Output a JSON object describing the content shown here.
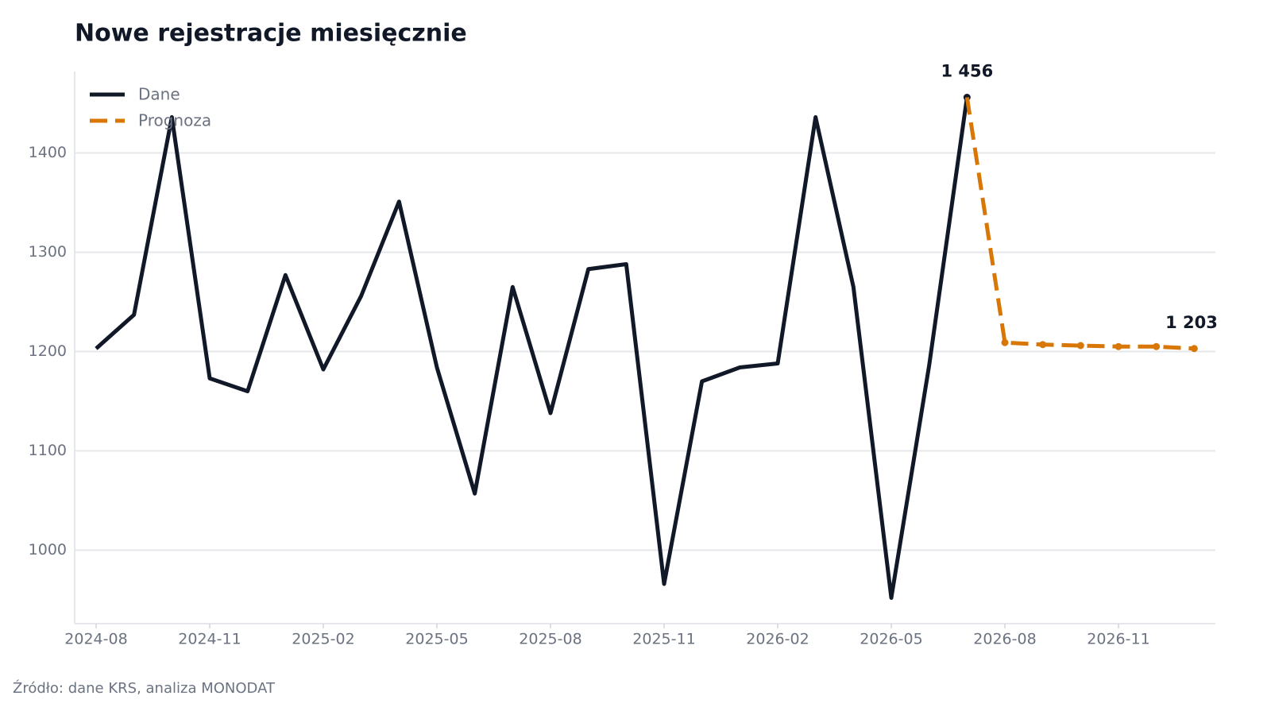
{
  "chart_data": {
    "type": "line",
    "title": "Nowe rejestracje miesięcznie",
    "source": "Źródło: dane KRS, analiza MONODAT",
    "categories": [
      "2024-08",
      null,
      null,
      "2024-11",
      null,
      null,
      "2025-02",
      null,
      null,
      "2025-05",
      null,
      null,
      "2025-08",
      null,
      null,
      "2025-11",
      null,
      null,
      "2026-02",
      null,
      null,
      "2026-05",
      null,
      null,
      "2026-08",
      null,
      null,
      "2026-11",
      null,
      null
    ],
    "ylim": [
      926,
      1482
    ],
    "yticks": [
      1000,
      1100,
      1200,
      1300,
      1400
    ],
    "grid": true,
    "legend": "upper left",
    "series": [
      {
        "name": "Dane",
        "color": "#111827",
        "style": "solid",
        "values": [
          1203,
          1237,
          1436,
          1173,
          1160,
          1277,
          1182,
          1256,
          1351,
          1184,
          1057,
          1265,
          1138,
          1283,
          1288,
          966,
          1170,
          1184,
          1188,
          1436,
          1265,
          952,
          1186,
          1456,
          null,
          null,
          null,
          null,
          null,
          null
        ],
        "value_labels": [
          null,
          null,
          null,
          null,
          null,
          null,
          null,
          null,
          null,
          null,
          null,
          null,
          null,
          null,
          null,
          null,
          null,
          null,
          null,
          null,
          null,
          null,
          null,
          "1 456",
          null,
          null,
          null,
          null,
          null,
          null
        ]
      },
      {
        "name": "Prognoza",
        "color": "#d97706",
        "style": "dashed",
        "values": [
          null,
          null,
          null,
          null,
          null,
          null,
          null,
          null,
          null,
          null,
          null,
          null,
          null,
          null,
          null,
          null,
          null,
          null,
          null,
          null,
          null,
          null,
          null,
          1456,
          1209,
          1207,
          1206,
          1205,
          1205,
          1203
        ],
        "value_labels": [
          null,
          null,
          null,
          null,
          null,
          null,
          null,
          null,
          null,
          null,
          null,
          null,
          null,
          null,
          null,
          null,
          null,
          null,
          null,
          null,
          null,
          null,
          null,
          null,
          null,
          null,
          null,
          null,
          null,
          "1 203"
        ]
      }
    ]
  }
}
